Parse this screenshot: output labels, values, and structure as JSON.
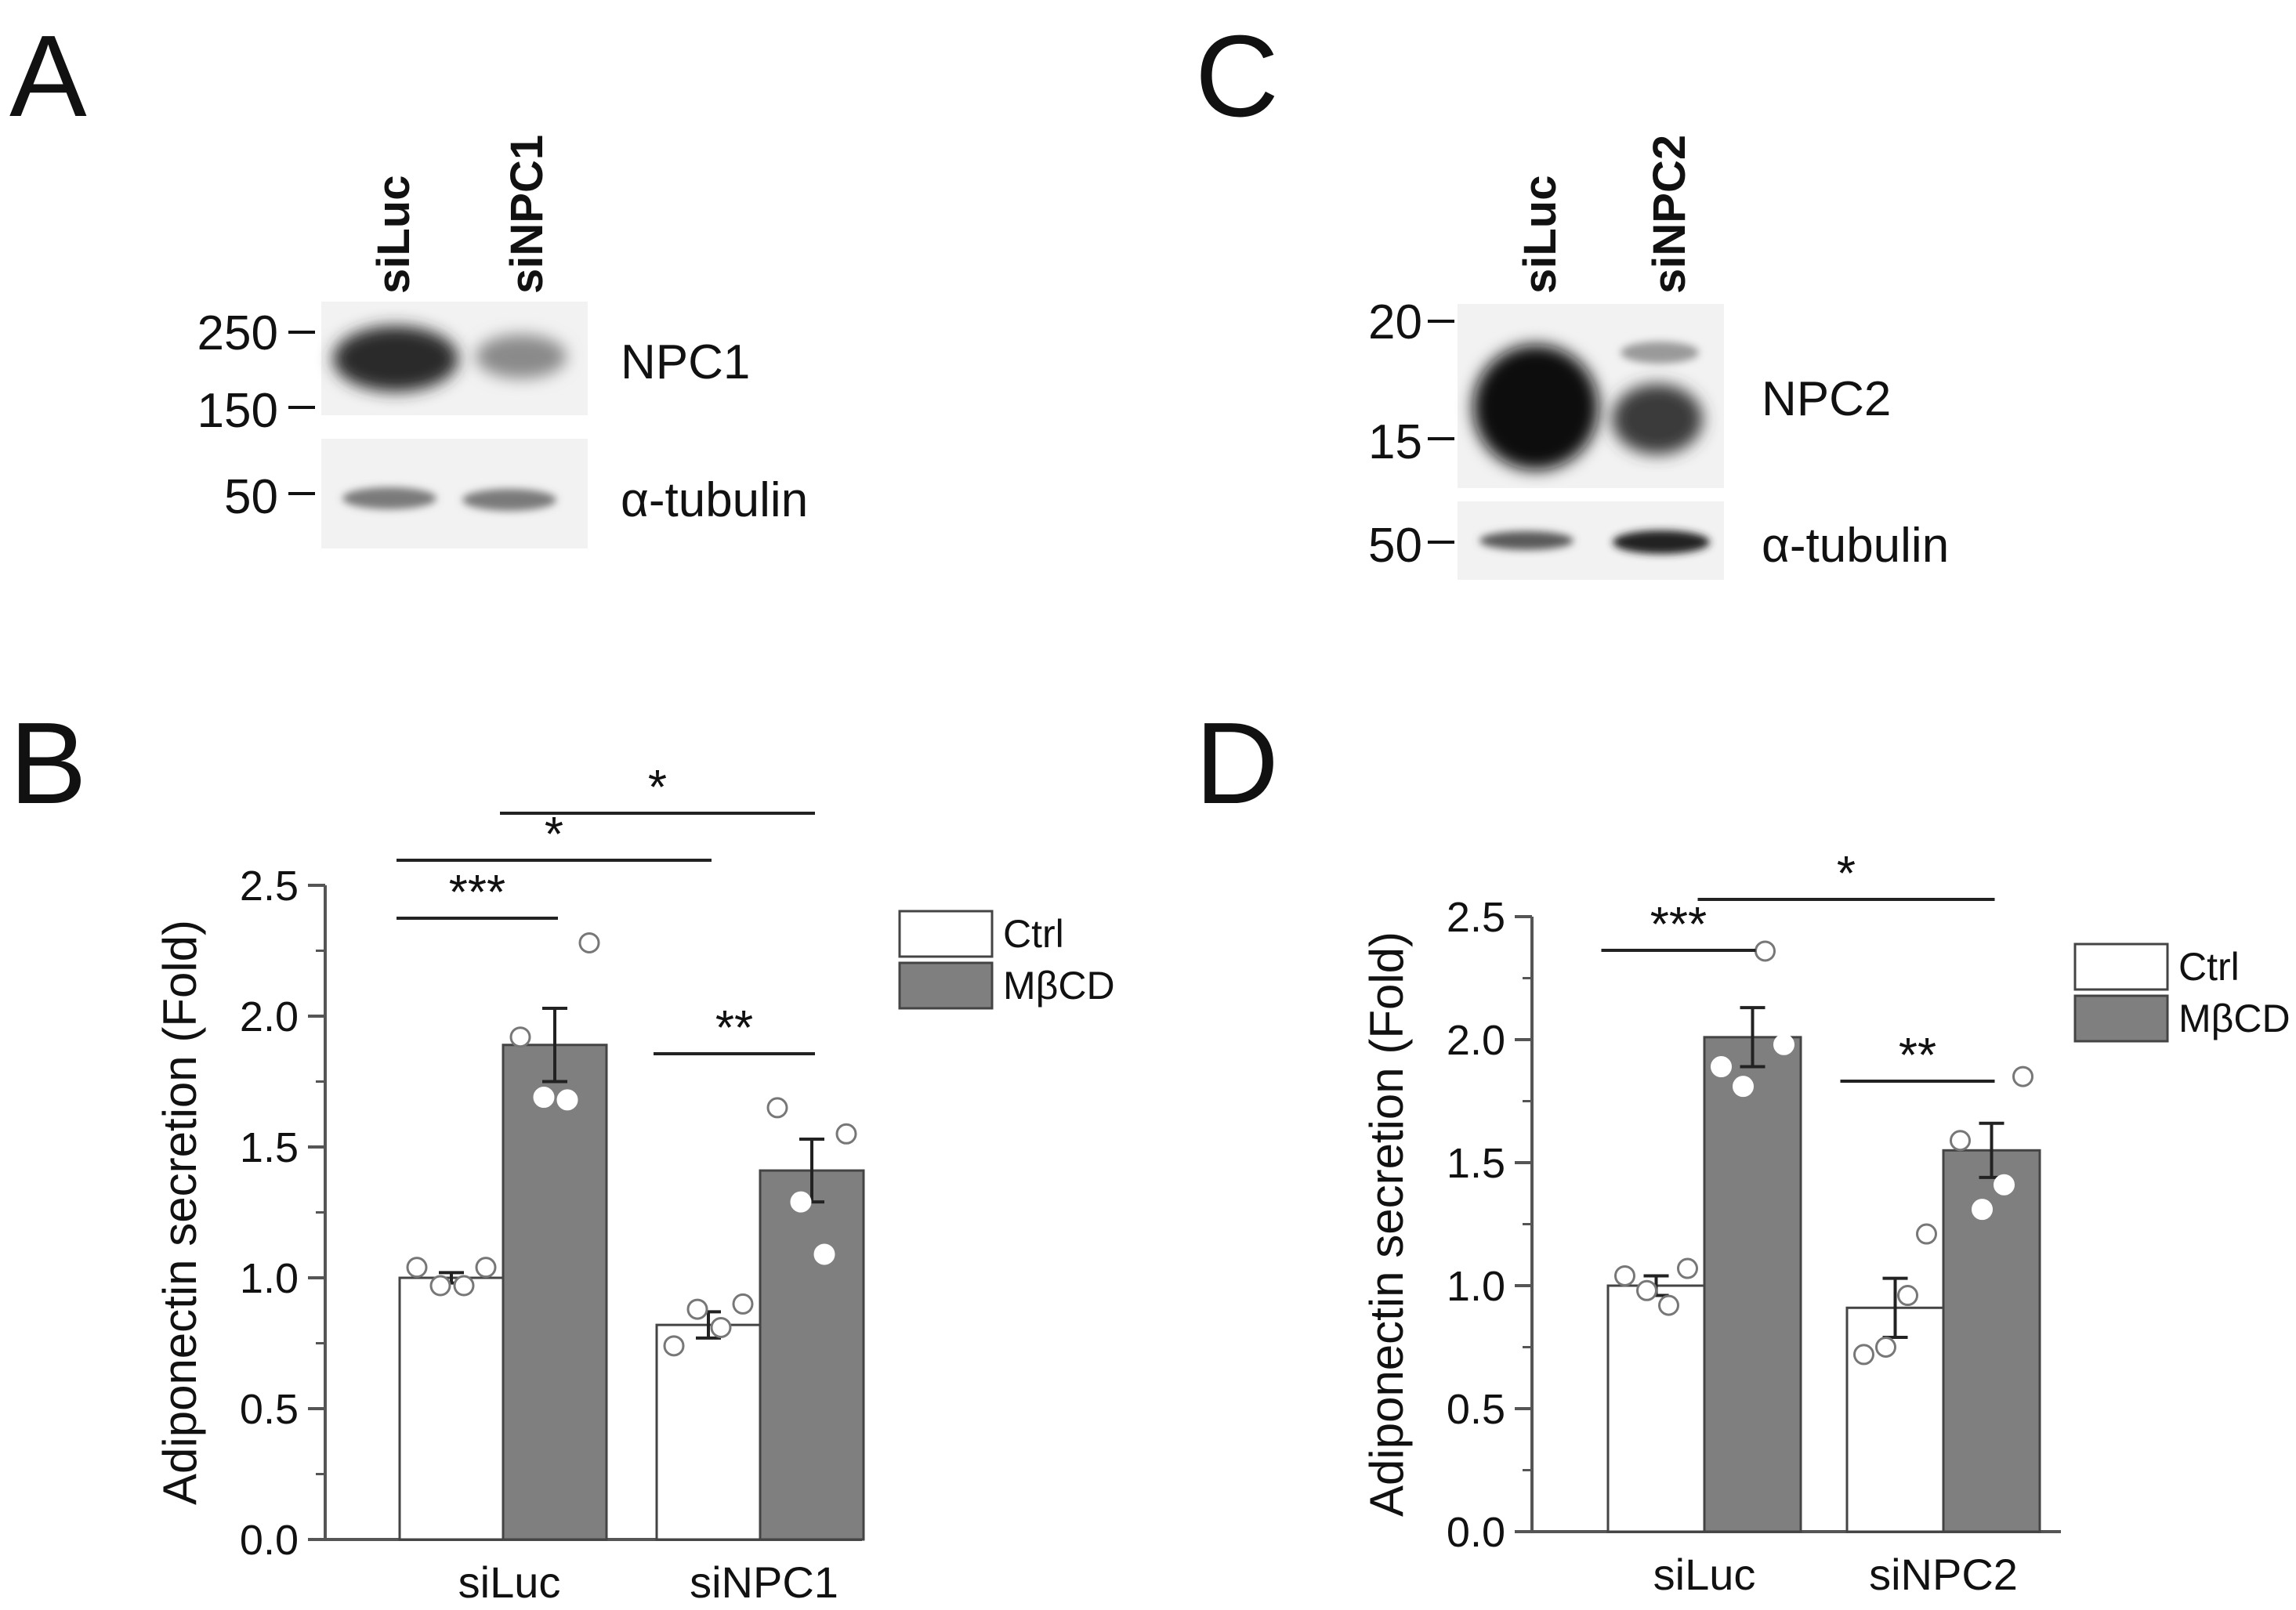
{
  "panels": {
    "A": {
      "letter": "A",
      "lanes": [
        "siLuc",
        "siNPC1"
      ],
      "blots": [
        {
          "name": "NPC1",
          "markers": [
            "250",
            "150"
          ]
        },
        {
          "name": "α-tubulin",
          "markers": [
            "50"
          ]
        }
      ]
    },
    "C": {
      "letter": "C",
      "lanes": [
        "siLuc",
        "siNPC2"
      ],
      "blots": [
        {
          "name": "NPC2",
          "markers": [
            "20",
            "15"
          ]
        },
        {
          "name": "α-tubulin",
          "markers": [
            "50"
          ]
        }
      ]
    },
    "B": {
      "letter": "B"
    },
    "D": {
      "letter": "D"
    }
  },
  "chart_data": [
    {
      "panel": "B",
      "type": "bar",
      "categories": [
        "siLuc",
        "siNPC1"
      ],
      "ylabel": "Adiponectin secretion (Fold)",
      "ylim": [
        0,
        2.5
      ],
      "yticks": [
        "0.0",
        "0.5",
        "1.0",
        "1.5",
        "2.0",
        "2.5"
      ],
      "legend": {
        "position": "top-right",
        "entries": [
          "Ctrl",
          "MβCD"
        ]
      },
      "series": [
        {
          "name": "Ctrl",
          "color": "#ffffff",
          "values": [
            1.0,
            0.82
          ],
          "sem": [
            0.02,
            0.05
          ],
          "points": [
            [
              1.04,
              0.97,
              0.97,
              1.04
            ],
            [
              0.74,
              0.88,
              0.81,
              0.9
            ]
          ]
        },
        {
          "name": "MβCD",
          "color": "#7f7f7f",
          "values": [
            1.89,
            1.41
          ],
          "sem": [
            0.14,
            0.12
          ],
          "points": [
            [
              1.92,
              1.69,
              1.68,
              2.28
            ],
            [
              1.65,
              1.29,
              1.09,
              1.55
            ]
          ]
        }
      ],
      "significance": [
        {
          "label": "***",
          "from": "siLuc.Ctrl",
          "to": "siLuc.MβCD"
        },
        {
          "label": "**",
          "from": "siNPC1.Ctrl",
          "to": "siNPC1.MβCD"
        },
        {
          "label": "*",
          "from": "siLuc.Ctrl",
          "to": "siNPC1.Ctrl"
        },
        {
          "label": "*",
          "from": "siLuc.MβCD",
          "to": "siNPC1.MβCD"
        }
      ]
    },
    {
      "panel": "D",
      "type": "bar",
      "categories": [
        "siLuc",
        "siNPC2"
      ],
      "ylabel": "Adiponectin secretion (Fold)",
      "ylim": [
        0,
        2.5
      ],
      "yticks": [
        "0.0",
        "0.5",
        "1.0",
        "1.5",
        "2.0",
        "2.5"
      ],
      "legend": {
        "position": "top-right",
        "entries": [
          "Ctrl",
          "MβCD"
        ]
      },
      "series": [
        {
          "name": "Ctrl",
          "color": "#ffffff",
          "values": [
            1.0,
            0.91
          ],
          "sem": [
            0.04,
            0.12
          ],
          "points": [
            [
              1.04,
              0.98,
              0.92,
              1.07
            ],
            [
              0.72,
              0.75,
              0.96,
              1.21
            ]
          ]
        },
        {
          "name": "MβCD",
          "color": "#7f7f7f",
          "values": [
            2.01,
            1.55
          ],
          "sem": [
            0.12,
            0.11
          ],
          "points": [
            [
              1.89,
              1.81,
              2.36,
              1.98
            ],
            [
              1.59,
              1.31,
              1.41,
              1.85
            ]
          ]
        }
      ],
      "significance": [
        {
          "label": "***",
          "from": "siLuc.Ctrl",
          "to": "siLuc.MβCD"
        },
        {
          "label": "**",
          "from": "siNPC2.Ctrl",
          "to": "siNPC2.MβCD"
        },
        {
          "label": "*",
          "from": "siLuc.MβCD",
          "to": "siNPC2.MβCD"
        }
      ]
    }
  ]
}
